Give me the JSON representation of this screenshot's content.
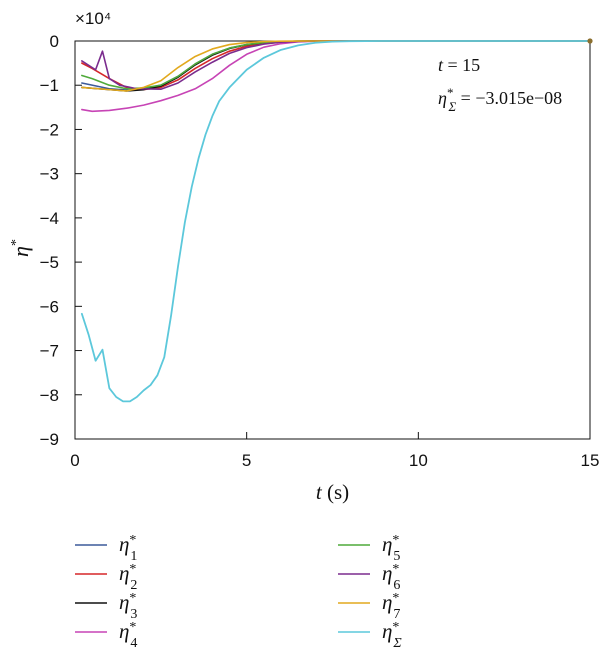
{
  "chart_data": {
    "type": "line",
    "title": "",
    "xlabel": "t (s)",
    "ylabel": "η*",
    "y_scale_label": "×10⁴",
    "xlim": [
      0,
      15
    ],
    "ylim": [
      -90000,
      0
    ],
    "x_ticks": [
      0,
      5,
      10,
      15
    ],
    "y_ticks": [
      0,
      -10000,
      -20000,
      -30000,
      -40000,
      -50000,
      -60000,
      -70000,
      -80000,
      -90000
    ],
    "y_tick_labels": [
      "0",
      "−1",
      "−2",
      "−3",
      "−4",
      "−5",
      "−6",
      "−7",
      "−8",
      "−9"
    ],
    "grid": false,
    "legend_position": "below",
    "annotation": {
      "time_label": "t = 15",
      "sum_label": "η*Σ = −3.015e−08"
    },
    "series": [
      {
        "name": "η*1",
        "color": "#3C5A9A",
        "points": [
          [
            0.2,
            -9500
          ],
          [
            1,
            -10800
          ],
          [
            1.5,
            -11100
          ],
          [
            2,
            -10800
          ],
          [
            2.5,
            -10000
          ],
          [
            3,
            -8000
          ],
          [
            3.5,
            -5200
          ],
          [
            4,
            -3000
          ],
          [
            4.5,
            -1600
          ],
          [
            5,
            -800
          ],
          [
            5.5,
            -350
          ],
          [
            6,
            -120
          ],
          [
            6.5,
            -40
          ],
          [
            7,
            -10
          ],
          [
            8,
            0
          ],
          [
            15,
            0
          ]
        ]
      },
      {
        "name": "η*2",
        "color": "#D62728",
        "points": [
          [
            0.2,
            -5000
          ],
          [
            0.5,
            -6200
          ],
          [
            1,
            -8500
          ],
          [
            1.5,
            -10500
          ],
          [
            2,
            -11000
          ],
          [
            2.5,
            -10500
          ],
          [
            3,
            -8800
          ],
          [
            3.5,
            -6200
          ],
          [
            4,
            -4000
          ],
          [
            4.5,
            -2300
          ],
          [
            5,
            -1200
          ],
          [
            5.5,
            -550
          ],
          [
            6,
            -220
          ],
          [
            6.5,
            -70
          ],
          [
            7,
            -20
          ],
          [
            8,
            0
          ],
          [
            15,
            0
          ]
        ]
      },
      {
        "name": "η*3",
        "color": "#111111",
        "points": [
          [
            0.2,
            -10500
          ],
          [
            1,
            -11000
          ],
          [
            1.5,
            -11300
          ],
          [
            2,
            -11000
          ],
          [
            2.5,
            -10200
          ],
          [
            3,
            -8200
          ],
          [
            3.5,
            -5400
          ],
          [
            4,
            -3200
          ],
          [
            4.5,
            -1700
          ],
          [
            5,
            -850
          ],
          [
            5.5,
            -380
          ],
          [
            6,
            -130
          ],
          [
            6.5,
            -40
          ],
          [
            7,
            -10
          ],
          [
            8,
            0
          ],
          [
            15,
            0
          ]
        ]
      },
      {
        "name": "η*4",
        "color": "#C744B5",
        "points": [
          [
            0.2,
            -15500
          ],
          [
            0.5,
            -15900
          ],
          [
            1,
            -15700
          ],
          [
            1.5,
            -15200
          ],
          [
            2,
            -14500
          ],
          [
            2.5,
            -13500
          ],
          [
            3,
            -12300
          ],
          [
            3.5,
            -10800
          ],
          [
            4,
            -8500
          ],
          [
            4.5,
            -5500
          ],
          [
            5,
            -3000
          ],
          [
            5.5,
            -1400
          ],
          [
            6,
            -600
          ],
          [
            6.5,
            -200
          ],
          [
            7,
            -50
          ],
          [
            7.5,
            -10
          ],
          [
            8,
            0
          ],
          [
            15,
            0
          ]
        ]
      },
      {
        "name": "η*5",
        "color": "#4FAA3A",
        "points": [
          [
            0.2,
            -7800
          ],
          [
            0.5,
            -8500
          ],
          [
            1,
            -10000
          ],
          [
            1.5,
            -10800
          ],
          [
            2,
            -10600
          ],
          [
            2.5,
            -10000
          ],
          [
            3,
            -8000
          ],
          [
            3.5,
            -5200
          ],
          [
            4,
            -3000
          ],
          [
            4.5,
            -1600
          ],
          [
            5,
            -800
          ],
          [
            5.5,
            -350
          ],
          [
            6,
            -120
          ],
          [
            6.5,
            -40
          ],
          [
            7,
            -10
          ],
          [
            8,
            0
          ],
          [
            15,
            0
          ]
        ]
      },
      {
        "name": "η*6",
        "color": "#7B2C8E",
        "points": [
          [
            0.2,
            -4500
          ],
          [
            0.6,
            -6500
          ],
          [
            0.8,
            -2300
          ],
          [
            1,
            -8500
          ],
          [
            1.3,
            -10000
          ],
          [
            1.8,
            -10800
          ],
          [
            2.5,
            -10900
          ],
          [
            3,
            -9500
          ],
          [
            3.5,
            -7000
          ],
          [
            4,
            -4800
          ],
          [
            4.5,
            -2800
          ],
          [
            5,
            -1500
          ],
          [
            5.5,
            -700
          ],
          [
            6,
            -280
          ],
          [
            6.5,
            -90
          ],
          [
            7,
            -20
          ],
          [
            8,
            0
          ],
          [
            15,
            0
          ]
        ]
      },
      {
        "name": "η*7",
        "color": "#E2A91E",
        "points": [
          [
            0.2,
            -10500
          ],
          [
            1,
            -11000
          ],
          [
            1.5,
            -11300
          ],
          [
            2,
            -10500
          ],
          [
            2.5,
            -9000
          ],
          [
            3,
            -6000
          ],
          [
            3.5,
            -3500
          ],
          [
            4,
            -1800
          ],
          [
            4.5,
            -800
          ],
          [
            5,
            -350
          ],
          [
            5.5,
            -130
          ],
          [
            6,
            -40
          ],
          [
            6.5,
            -10
          ],
          [
            7,
            0
          ],
          [
            15,
            0
          ]
        ]
      },
      {
        "name": "η*Σ",
        "color": "#5CC8DB",
        "points": [
          [
            0.2,
            -61700
          ],
          [
            0.4,
            -66500
          ],
          [
            0.6,
            -72300
          ],
          [
            0.8,
            -69800
          ],
          [
            1,
            -78500
          ],
          [
            1.2,
            -80500
          ],
          [
            1.4,
            -81500
          ],
          [
            1.6,
            -81500
          ],
          [
            1.8,
            -80500
          ],
          [
            2,
            -79000
          ],
          [
            2.2,
            -77800
          ],
          [
            2.4,
            -75600
          ],
          [
            2.6,
            -71500
          ],
          [
            2.8,
            -62000
          ],
          [
            3,
            -51000
          ],
          [
            3.2,
            -41000
          ],
          [
            3.4,
            -33000
          ],
          [
            3.6,
            -26500
          ],
          [
            3.8,
            -21200
          ],
          [
            4,
            -17000
          ],
          [
            4.2,
            -13600
          ],
          [
            4.5,
            -10500
          ],
          [
            5,
            -6500
          ],
          [
            5.5,
            -3800
          ],
          [
            6,
            -2000
          ],
          [
            6.5,
            -1000
          ],
          [
            7,
            -400
          ],
          [
            7.5,
            -150
          ],
          [
            8,
            -40
          ],
          [
            9,
            0
          ],
          [
            15,
            0
          ]
        ]
      }
    ]
  }
}
